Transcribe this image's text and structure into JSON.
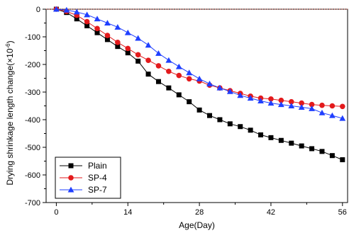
{
  "chart_data": {
    "type": "line",
    "title": "",
    "xlabel": "Age(Day)",
    "ylabel": "Drying shrinkage length change(×10",
    "ylabel_exponent": "-6",
    "ylabel_close": ")",
    "xlim": [
      -2,
      57
    ],
    "ylim": [
      -700,
      0
    ],
    "xticks": [
      0,
      14,
      28,
      42,
      56
    ],
    "yticks": [
      0,
      -100,
      -200,
      -300,
      -400,
      -500,
      -600,
      -700
    ],
    "xtick_labels": [
      "0",
      "14",
      "28",
      "42",
      "56"
    ],
    "ytick_labels": [
      "0",
      "-100",
      "-200",
      "-300",
      "-400",
      "-500",
      "-600",
      "-700"
    ],
    "reference_line": {
      "y": 0,
      "color": "#c0392b",
      "style": "dotted"
    },
    "grid": false,
    "legend_position": "bottom-left",
    "x": [
      0,
      2,
      4,
      6,
      8,
      10,
      12,
      14,
      16,
      18,
      20,
      22,
      24,
      26,
      28,
      30,
      32,
      34,
      36,
      38,
      40,
      42,
      44,
      46,
      48,
      50,
      52,
      54,
      56
    ],
    "series": [
      {
        "name": "Plain",
        "marker": "square",
        "color": "#000000",
        "values": [
          0,
          -12,
          -35,
          -60,
          -85,
          -110,
          -135,
          -158,
          -188,
          -235,
          -262,
          -285,
          -310,
          -335,
          -365,
          -385,
          -400,
          -415,
          -425,
          -438,
          -455,
          -465,
          -475,
          -485,
          -495,
          -505,
          -515,
          -530,
          -545
        ]
      },
      {
        "name": "SP-4",
        "marker": "circle",
        "color": "#e31a1c",
        "values": [
          0,
          -8,
          -22,
          -45,
          -70,
          -95,
          -120,
          -142,
          -165,
          -185,
          -205,
          -225,
          -240,
          -252,
          -260,
          -275,
          -285,
          -295,
          -305,
          -315,
          -322,
          -325,
          -330,
          -335,
          -340,
          -345,
          -348,
          -350,
          -352
        ]
      },
      {
        "name": "SP-7",
        "marker": "triangle",
        "color": "#1f3fff",
        "values": [
          0,
          -3,
          -10,
          -20,
          -35,
          -50,
          -65,
          -85,
          -105,
          -130,
          -160,
          -185,
          -208,
          -230,
          -252,
          -270,
          -285,
          -298,
          -312,
          -322,
          -332,
          -340,
          -345,
          -350,
          -355,
          -360,
          -375,
          -385,
          -395
        ]
      }
    ]
  }
}
